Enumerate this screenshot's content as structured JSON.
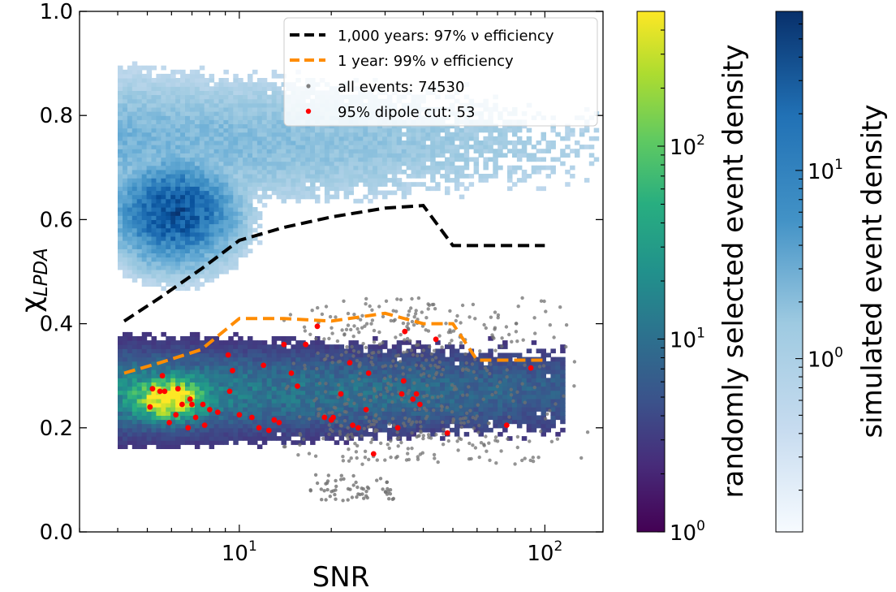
{
  "chart_data": {
    "type": "scatter",
    "xlabel": "SNR",
    "ylabel": "χ",
    "ylabel_sub": "LPDA",
    "x_scale": "log",
    "xlim": [
      3.0,
      155
    ],
    "ylim": [
      0.0,
      1.0
    ],
    "x_ticks": [
      {
        "value": 10,
        "base": "10",
        "exp": "1"
      },
      {
        "value": 100,
        "base": "10",
        "exp": "2"
      }
    ],
    "y_ticks": [
      "0.0",
      "0.2",
      "0.4",
      "0.6",
      "0.8",
      "1.0"
    ],
    "legend": {
      "position": "top-right",
      "entries": [
        {
          "label": "1,000 years: 97% ν efficiency",
          "kind": "dashed-line",
          "color": "#000000"
        },
        {
          "label": "1 year: 99% ν efficiency",
          "kind": "dashed-line",
          "color": "#ff8c00"
        },
        {
          "label": "all events: 74530",
          "kind": "marker",
          "color": "#808080"
        },
        {
          "label": "95% dipole cut: 53",
          "kind": "marker",
          "color": "#ff0000"
        }
      ]
    },
    "series": [
      {
        "name": "1,000 years: 97% ν efficiency",
        "style": "dashed",
        "color": "#000000",
        "points": [
          [
            4.2,
            0.405
          ],
          [
            5.5,
            0.45
          ],
          [
            7.5,
            0.505
          ],
          [
            10,
            0.56
          ],
          [
            14,
            0.585
          ],
          [
            20,
            0.605
          ],
          [
            30,
            0.622
          ],
          [
            40,
            0.627
          ],
          [
            50,
            0.55
          ],
          [
            100,
            0.55
          ]
        ]
      },
      {
        "name": "1 year: 99% ν efficiency",
        "style": "dashed",
        "color": "#ff8c00",
        "points": [
          [
            4.2,
            0.305
          ],
          [
            5.5,
            0.325
          ],
          [
            7.5,
            0.35
          ],
          [
            10,
            0.41
          ],
          [
            14,
            0.41
          ],
          [
            20,
            0.405
          ],
          [
            30,
            0.42
          ],
          [
            40,
            0.4
          ],
          [
            50,
            0.4
          ],
          [
            60,
            0.33
          ],
          [
            100,
            0.33
          ]
        ]
      },
      {
        "name": "95% dipole cut: 53",
        "style": "points",
        "color": "#ff0000",
        "points": [
          [
            5.1,
            0.24
          ],
          [
            5.2,
            0.275
          ],
          [
            5.5,
            0.27
          ],
          [
            5.6,
            0.3
          ],
          [
            5.7,
            0.27
          ],
          [
            5.9,
            0.21
          ],
          [
            6.2,
            0.225
          ],
          [
            6.3,
            0.275
          ],
          [
            6.5,
            0.245
          ],
          [
            6.8,
            0.2
          ],
          [
            6.9,
            0.255
          ],
          [
            7.0,
            0.245
          ],
          [
            7.2,
            0.22
          ],
          [
            7.6,
            0.245
          ],
          [
            7.7,
            0.205
          ],
          [
            8.0,
            0.235
          ],
          [
            8.5,
            0.23
          ],
          [
            9.2,
            0.34
          ],
          [
            9.5,
            0.31
          ],
          [
            9.3,
            0.27
          ],
          [
            10.0,
            0.225
          ],
          [
            11.0,
            0.22
          ],
          [
            11.6,
            0.2
          ],
          [
            12.0,
            0.32
          ],
          [
            12.5,
            0.195
          ],
          [
            13.0,
            0.215
          ],
          [
            13.5,
            0.21
          ],
          [
            14.0,
            0.36
          ],
          [
            14.8,
            0.305
          ],
          [
            15.5,
            0.28
          ],
          [
            16.5,
            0.36
          ],
          [
            19.0,
            0.22
          ],
          [
            20.0,
            0.215
          ],
          [
            20.3,
            0.22
          ],
          [
            21.5,
            0.265
          ],
          [
            23.0,
            0.325
          ],
          [
            23.5,
            0.205
          ],
          [
            24.5,
            0.2
          ],
          [
            26.0,
            0.235
          ],
          [
            26.5,
            0.305
          ],
          [
            33.0,
            0.2
          ],
          [
            34.0,
            0.265
          ],
          [
            34.5,
            0.29
          ],
          [
            34.8,
            0.385
          ],
          [
            37.0,
            0.255
          ],
          [
            38.0,
            0.265
          ],
          [
            39.0,
            0.245
          ],
          [
            44.0,
            0.37
          ],
          [
            48.0,
            0.19
          ],
          [
            75.0,
            0.205
          ],
          [
            90.0,
            0.315
          ],
          [
            27.5,
            0.15
          ],
          [
            18.0,
            0.395
          ]
        ]
      }
    ],
    "colorbars": [
      {
        "label": "randomly selected event density",
        "scale": "log",
        "range": [
          1,
          500
        ],
        "colormap": "viridis",
        "ticks": [
          {
            "base": "10",
            "exp": "0"
          },
          {
            "base": "10",
            "exp": "1"
          },
          {
            "base": "10",
            "exp": "2"
          }
        ]
      },
      {
        "label": "simulated event density",
        "scale": "log",
        "range": [
          0.12,
          70
        ],
        "colormap": "Blues",
        "ticks": [
          {
            "base": "10",
            "exp": "0"
          },
          {
            "base": "10",
            "exp": "1"
          }
        ]
      }
    ]
  }
}
